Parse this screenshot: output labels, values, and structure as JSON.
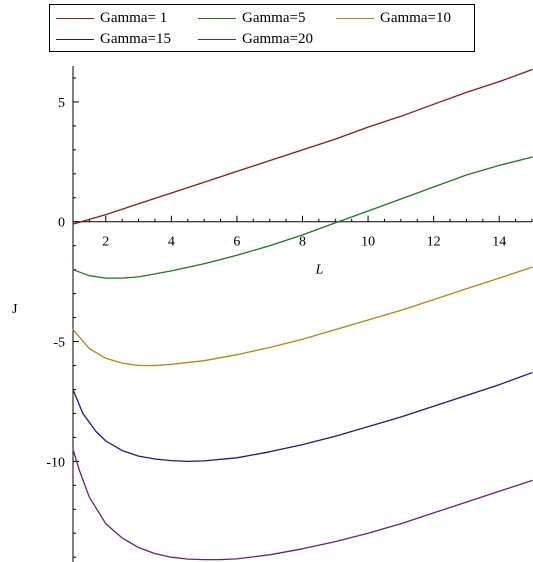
{
  "chart_data": {
    "type": "line",
    "title": "",
    "xlabel": "L",
    "ylabel": "J",
    "xlim": [
      1,
      15
    ],
    "ylim": [
      -14.2,
      6.5
    ],
    "x_ticks": [
      "2",
      "4",
      "6",
      "8",
      "10",
      "12",
      "14"
    ],
    "y_ticks": [
      "5",
      "0",
      "-5",
      "-10"
    ],
    "grid": false,
    "legend_position": "top",
    "series": [
      {
        "name": "Gamma= 1",
        "color": "#8b1a1a",
        "x": [
          1.0,
          1.5,
          2.0,
          3.0,
          4.0,
          5.0,
          6.0,
          7.0,
          8.0,
          9.0,
          10.0,
          11.0,
          12.0,
          13.0,
          14.0,
          15.0
        ],
        "y": [
          -0.1,
          0.1,
          0.3,
          0.75,
          1.2,
          1.65,
          2.1,
          2.55,
          3.0,
          3.45,
          3.95,
          4.4,
          4.9,
          5.4,
          5.85,
          6.35
        ]
      },
      {
        "name": "Gamma=5",
        "color": "#1a7a1a",
        "x": [
          1.0,
          1.5,
          2.0,
          2.5,
          3.0,
          4.0,
          5.0,
          6.0,
          7.0,
          8.0,
          9.0,
          10.0,
          11.0,
          12.0,
          13.0,
          14.0,
          15.0
        ],
        "y": [
          -2.0,
          -2.25,
          -2.35,
          -2.35,
          -2.3,
          -2.05,
          -1.75,
          -1.4,
          -1.0,
          -0.55,
          -0.05,
          0.45,
          0.95,
          1.45,
          1.95,
          2.35,
          2.7
        ]
      },
      {
        "name": "Gamma=10",
        "color": "#b8860b",
        "x": [
          1.0,
          1.5,
          2.0,
          2.5,
          3.0,
          3.5,
          4.0,
          5.0,
          6.0,
          7.0,
          8.0,
          9.0,
          10.0,
          11.0,
          12.0,
          13.0,
          14.0,
          15.0
        ],
        "y": [
          -4.5,
          -5.3,
          -5.7,
          -5.9,
          -6.0,
          -6.0,
          -5.95,
          -5.8,
          -5.55,
          -5.25,
          -4.9,
          -4.5,
          -4.1,
          -3.7,
          -3.25,
          -2.8,
          -2.35,
          -1.9
        ]
      },
      {
        "name": "Gamma=15",
        "color": "#1a1a8b",
        "x": [
          1.0,
          1.3,
          1.7,
          2.0,
          2.5,
          3.0,
          3.5,
          4.0,
          4.5,
          5.0,
          6.0,
          7.0,
          8.0,
          9.0,
          10.0,
          11.0,
          12.0,
          13.0,
          14.0,
          15.0
        ],
        "y": [
          -7.0,
          -8.0,
          -8.75,
          -9.15,
          -9.55,
          -9.78,
          -9.9,
          -9.97,
          -10.0,
          -9.98,
          -9.85,
          -9.6,
          -9.3,
          -8.95,
          -8.55,
          -8.15,
          -7.7,
          -7.25,
          -6.8,
          -6.3
        ]
      },
      {
        "name": "Gamma=20",
        "color": "#6b1f7a",
        "x": [
          1.0,
          1.2,
          1.5,
          2.0,
          2.5,
          3.0,
          3.5,
          4.0,
          4.5,
          5.0,
          5.5,
          6.0,
          7.0,
          8.0,
          9.0,
          10.0,
          11.0,
          12.0,
          13.0,
          14.0,
          15.0
        ],
        "y": [
          -9.5,
          -10.4,
          -11.5,
          -12.6,
          -13.2,
          -13.6,
          -13.85,
          -14.0,
          -14.08,
          -14.1,
          -14.1,
          -14.07,
          -13.9,
          -13.65,
          -13.35,
          -13.0,
          -12.6,
          -12.15,
          -11.7,
          -11.25,
          -10.8
        ]
      }
    ]
  }
}
